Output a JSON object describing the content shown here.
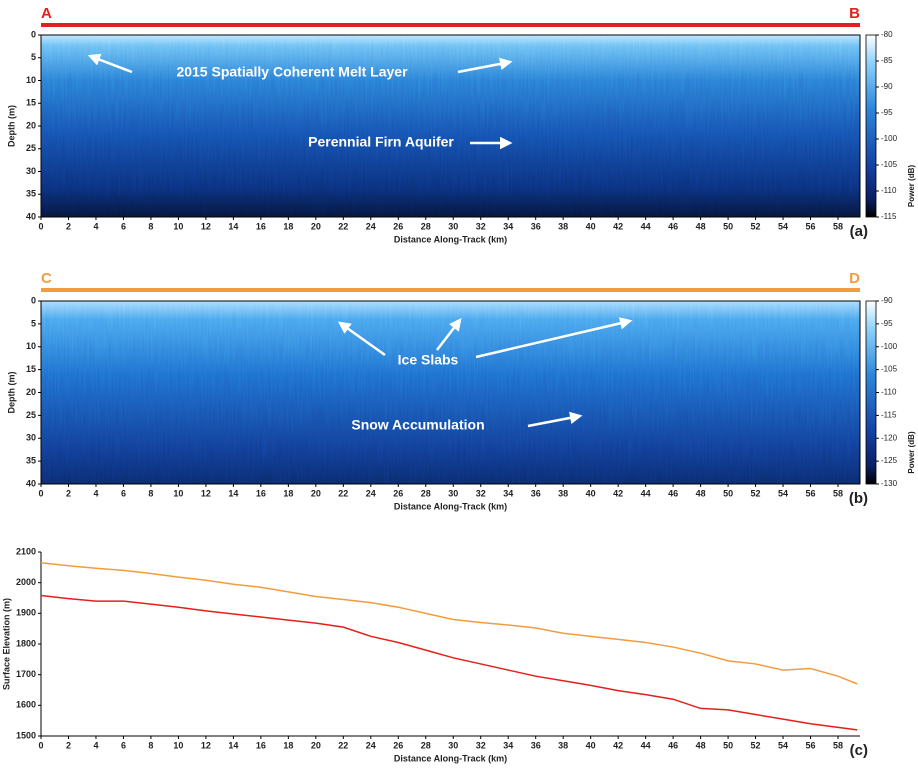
{
  "chart_data": [
    {
      "type": "radargram",
      "panel_label": "(a)",
      "start_label": "A",
      "end_label": "B",
      "track_color": "#e3201b",
      "xlabel": "Distance Along-Track (km)",
      "ylabel": "Depth (m)",
      "xlim": [
        0,
        59.6
      ],
      "xticks": [
        0,
        2,
        4,
        6,
        8,
        10,
        12,
        14,
        16,
        18,
        20,
        22,
        24,
        26,
        28,
        30,
        32,
        34,
        36,
        38,
        40,
        42,
        44,
        46,
        48,
        50,
        52,
        54,
        56,
        58
      ],
      "ylim": [
        0,
        40
      ],
      "yticks": [
        0,
        5,
        10,
        15,
        20,
        25,
        30,
        35,
        40
      ],
      "y_inverted": true,
      "colorbar": {
        "label": "Power (dB)",
        "lim": [
          -115,
          -80
        ],
        "ticks": [
          -80,
          -85,
          -90,
          -95,
          -100,
          -105,
          -110,
          -115
        ]
      },
      "annotations": [
        "2015 Spatially Coherent Melt Layer",
        "Perennial Firn Aquifer"
      ]
    },
    {
      "type": "radargram",
      "panel_label": "(b)",
      "start_label": "C",
      "end_label": "D",
      "track_color": "#f39c3f",
      "xlabel": "Distance Along-Track (km)",
      "ylabel": "Depth (m)",
      "xlim": [
        0,
        59.6
      ],
      "xticks": [
        0,
        2,
        4,
        6,
        8,
        10,
        12,
        14,
        16,
        18,
        20,
        22,
        24,
        26,
        28,
        30,
        32,
        34,
        36,
        38,
        40,
        42,
        44,
        46,
        48,
        50,
        52,
        54,
        56,
        58
      ],
      "ylim": [
        0,
        40
      ],
      "yticks": [
        0,
        5,
        10,
        15,
        20,
        25,
        30,
        35,
        40
      ],
      "y_inverted": true,
      "colorbar": {
        "label": "Power (dB)",
        "lim": [
          -130,
          -90
        ],
        "ticks": [
          -90,
          -95,
          -100,
          -105,
          -110,
          -115,
          -120,
          -125,
          -130
        ]
      },
      "annotations": [
        "Ice Slabs",
        "Snow Accumulation"
      ]
    },
    {
      "type": "line",
      "panel_label": "(c)",
      "xlabel": "Distance Along-Track (km)",
      "ylabel": "Surface Elevation (m)",
      "xlim": [
        0,
        59.6
      ],
      "xticks": [
        0,
        2,
        4,
        6,
        8,
        10,
        12,
        14,
        16,
        18,
        20,
        22,
        24,
        26,
        28,
        30,
        32,
        34,
        36,
        38,
        40,
        42,
        44,
        46,
        48,
        50,
        52,
        54,
        56,
        58
      ],
      "ylim": [
        1500,
        2100
      ],
      "yticks": [
        1500,
        1600,
        1700,
        1800,
        1900,
        2000,
        2100
      ],
      "x": [
        0,
        2,
        4,
        6,
        8,
        10,
        12,
        14,
        16,
        18,
        20,
        22,
        24,
        26,
        28,
        30,
        32,
        34,
        36,
        38,
        40,
        42,
        44,
        46,
        48,
        50,
        52,
        54,
        56,
        58,
        59.4
      ],
      "series": [
        {
          "color": "#e3201b",
          "values": [
            1958,
            1948,
            1940,
            1940,
            1930,
            1920,
            1908,
            1898,
            1888,
            1878,
            1868,
            1855,
            1825,
            1805,
            1780,
            1755,
            1735,
            1715,
            1695,
            1680,
            1665,
            1648,
            1635,
            1620,
            1590,
            1585,
            1570,
            1555,
            1540,
            1528,
            1520
          ]
        },
        {
          "color": "#f39c3f",
          "values": [
            2065,
            2055,
            2047,
            2040,
            2030,
            2018,
            2008,
            1995,
            1985,
            1970,
            1955,
            1945,
            1935,
            1920,
            1900,
            1880,
            1870,
            1862,
            1852,
            1835,
            1825,
            1815,
            1805,
            1790,
            1770,
            1745,
            1735,
            1715,
            1720,
            1695,
            1670
          ]
        }
      ]
    }
  ]
}
